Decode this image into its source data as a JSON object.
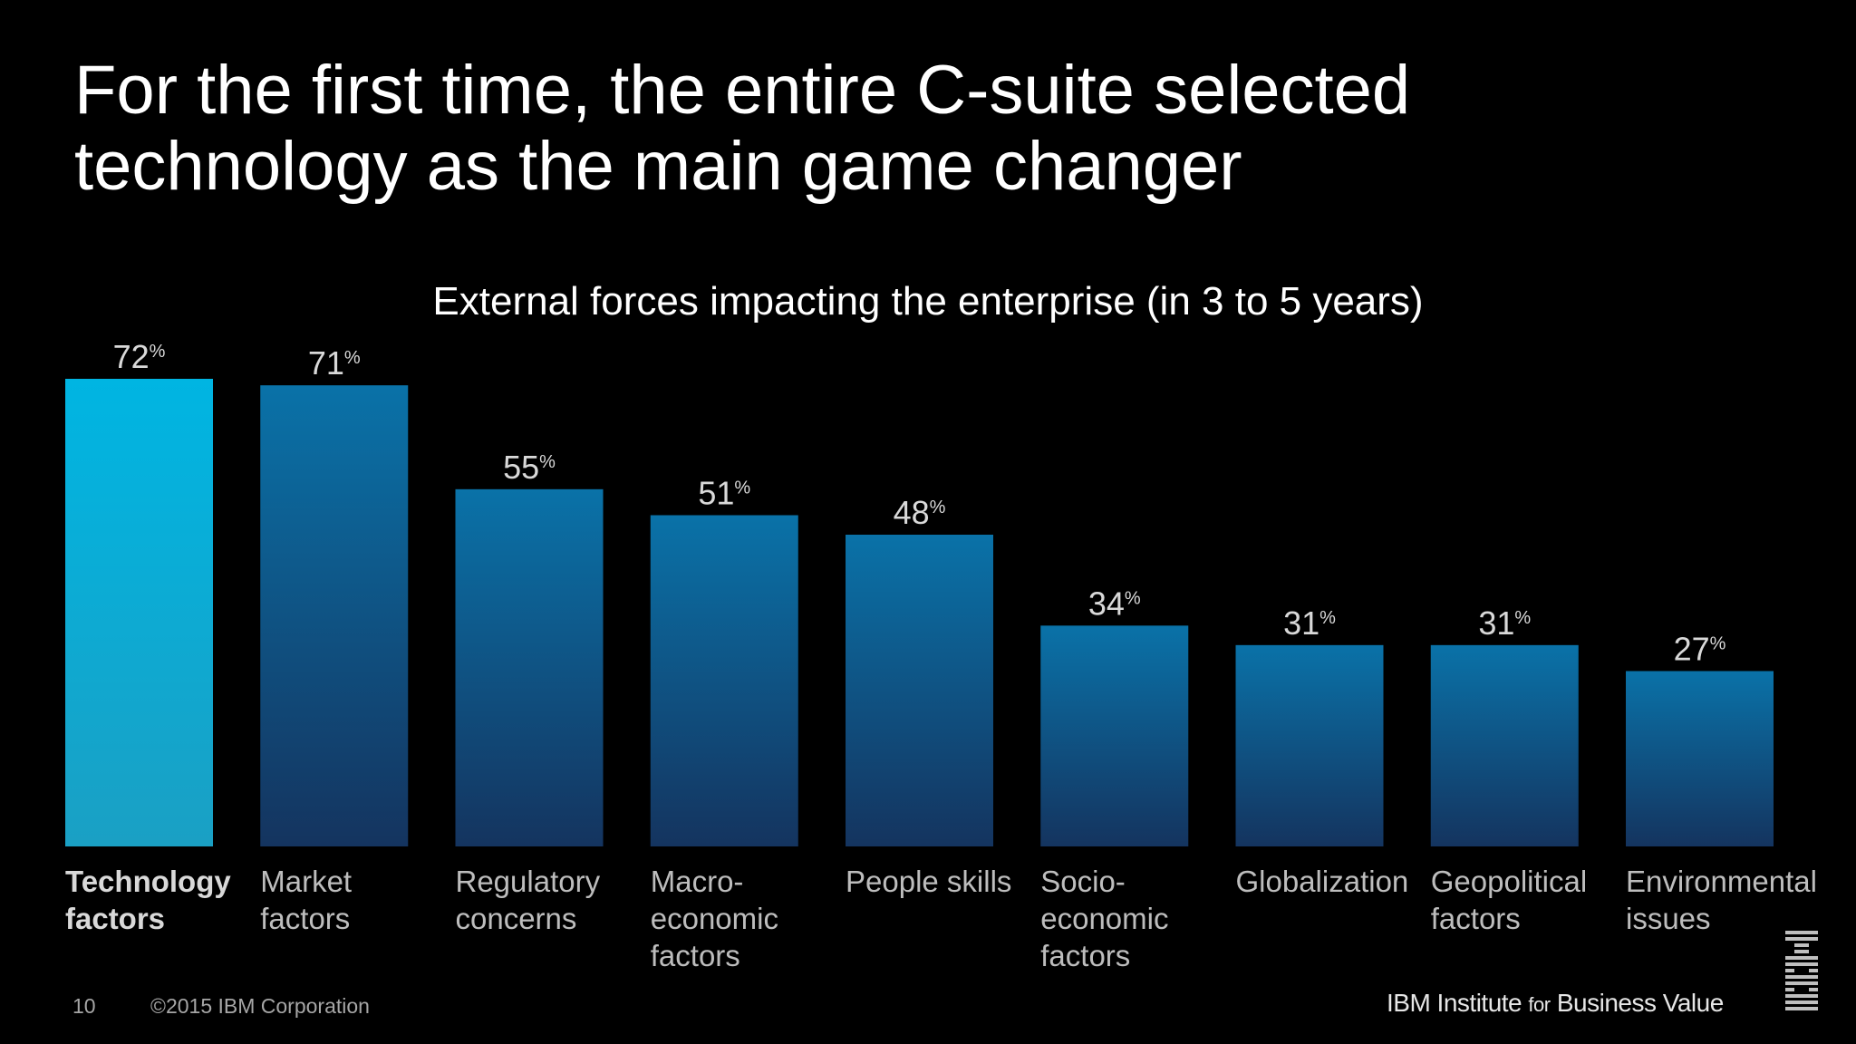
{
  "title_lines": [
    "For the first time, the entire C-suite selected",
    "technology as the main game changer"
  ],
  "chart_data": {
    "type": "bar",
    "title": "External forces impacting the enterprise (in 3 to 5 years)",
    "categories": [
      "Technology\nfactors",
      "Market\nfactors",
      "Regulatory\nconcerns",
      "Macro-\neconomic\nfactors",
      "People skills",
      "Socio-\neconomic\nfactors",
      "Globalization",
      "Geopolitical\nfactors",
      "Environmental\nissues"
    ],
    "values": [
      72,
      71,
      55,
      51,
      48,
      34,
      31,
      31,
      27
    ],
    "value_suffix": "%",
    "highlight_index": 0,
    "ylim": [
      0,
      72
    ],
    "colors": {
      "highlight_top": "#00b5e2",
      "highlight_bottom": "#1aa0c4",
      "bar_top": "#0a72a8",
      "bar_bottom": "#14345f",
      "value_label": "#d9d9d9"
    }
  },
  "footer": {
    "page_number": "10",
    "copyright": "©2015 IBM Corporation",
    "brand_part1": "IBM Institute ",
    "brand_for": "for",
    "brand_part2": " Business Value",
    "logo_icon": "ibm-logo-icon"
  }
}
